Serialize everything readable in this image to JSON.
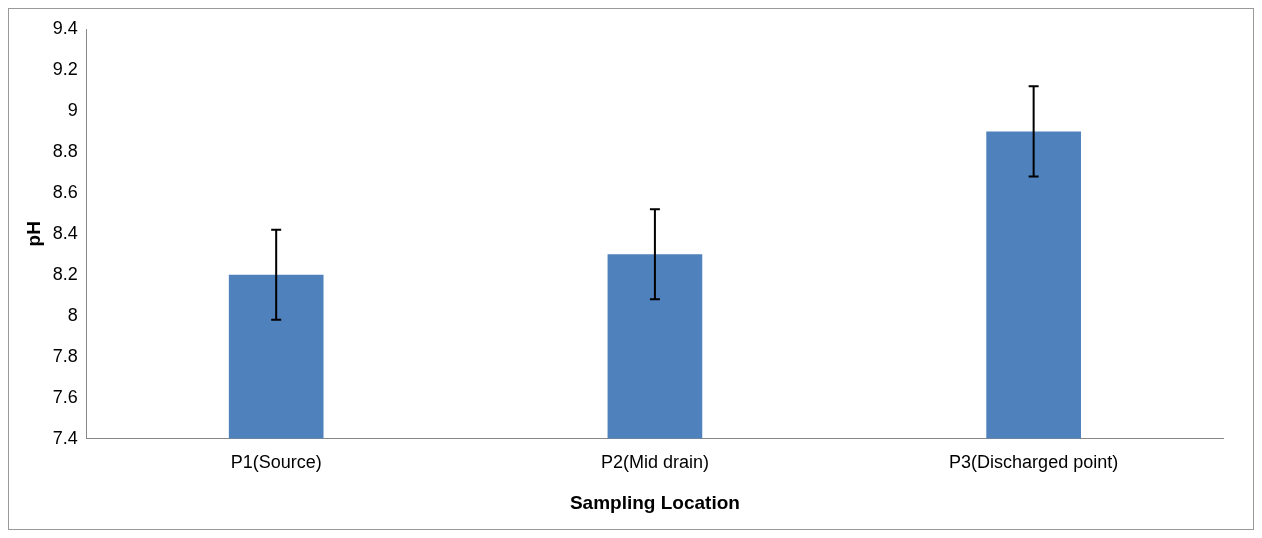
{
  "chart_data": {
    "type": "bar",
    "xlabel": "Sampling Location",
    "ylabel": "pH",
    "categories": [
      "P1(Source)",
      "P2(Mid drain)",
      "P3(Discharged point)"
    ],
    "values": [
      8.2,
      8.3,
      8.9
    ],
    "errors": [
      0.22,
      0.22,
      0.22
    ],
    "color": "#4f81bd",
    "ylim": [
      7.4,
      9.4
    ],
    "yticks": [
      7.4,
      7.6,
      7.8,
      8,
      8.2,
      8.4,
      8.6,
      8.8,
      9,
      9.2,
      9.4
    ],
    "grid": false,
    "legend": false
  }
}
